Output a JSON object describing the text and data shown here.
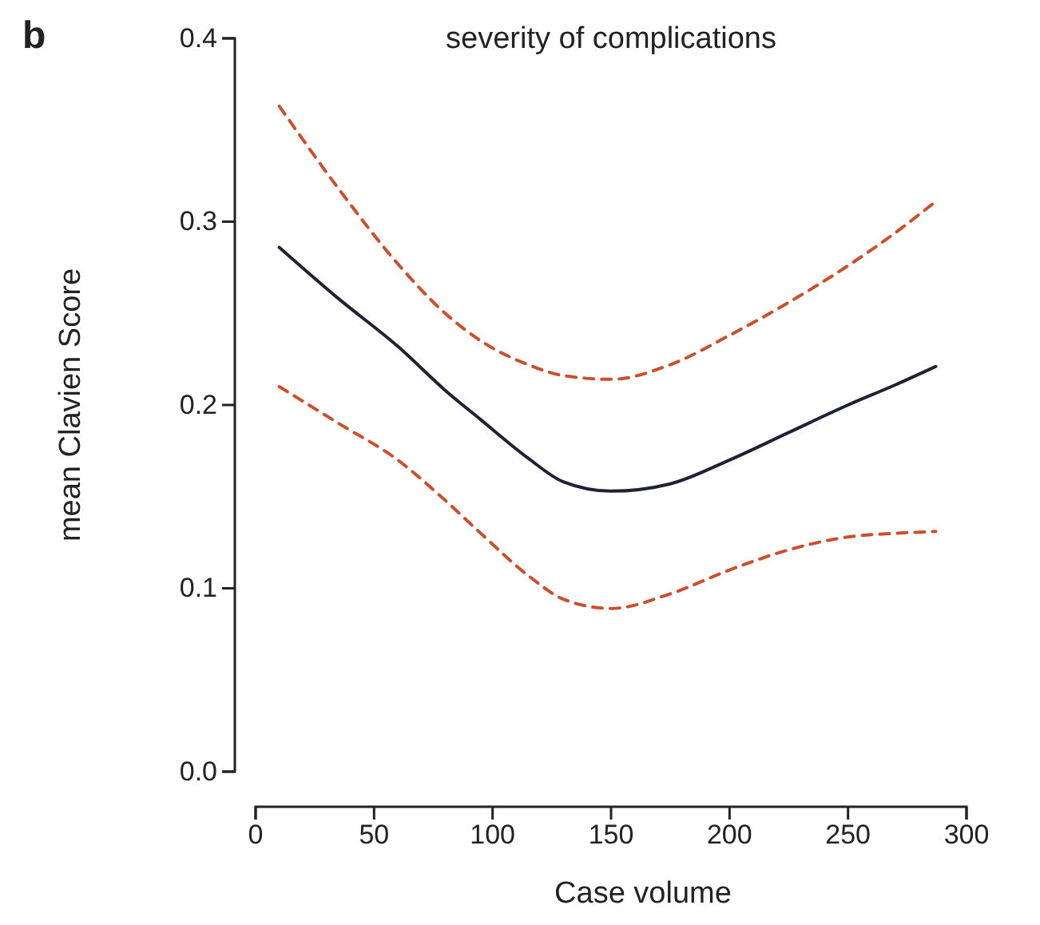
{
  "chart_data": {
    "type": "line",
    "title": "severity of complications",
    "xlabel": "Case volume",
    "ylabel": "mean Clavien Score",
    "annotations": [
      "b"
    ],
    "x": [
      10,
      35,
      60,
      80,
      95,
      115,
      130,
      150,
      175,
      200,
      225,
      250,
      270,
      287
    ],
    "xlim": [
      0,
      300
    ],
    "xticks": [
      0,
      50,
      100,
      150,
      200,
      250,
      300
    ],
    "ylim": [
      0,
      0.4
    ],
    "yticks": [
      {
        "value": 0,
        "label": "0.0"
      },
      0.1,
      0.2,
      0.3,
      0.4
    ],
    "marker": "none",
    "series": [
      {
        "color": "#1f2233",
        "line_style": "solid",
        "values": [
          0.286,
          0.258,
          0.232,
          0.208,
          0.192,
          0.171,
          0.158,
          0.153,
          0.157,
          0.17,
          0.185,
          0.2,
          0.211,
          0.221
        ]
      },
      {
        "color": "#c8502e",
        "line_style": "dashed",
        "values": [
          0.363,
          0.318,
          0.277,
          0.25,
          0.235,
          0.222,
          0.216,
          0.214,
          0.222,
          0.238,
          0.256,
          0.276,
          0.294,
          0.311
        ]
      },
      {
        "color": "#c8502e",
        "line_style": "dashed",
        "values": [
          0.21,
          0.19,
          0.17,
          0.148,
          0.13,
          0.107,
          0.094,
          0.089,
          0.097,
          0.11,
          0.121,
          0.128,
          0.13,
          0.131
        ]
      }
    ]
  }
}
